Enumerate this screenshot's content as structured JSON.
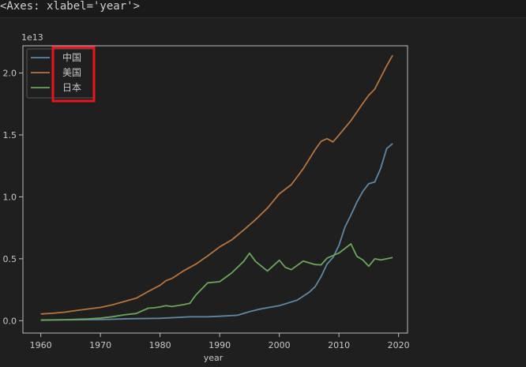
{
  "output_repr": "<Axes: xlabel='year'>",
  "chart_data": {
    "type": "line",
    "title": "",
    "xlabel": "year",
    "ylabel": "",
    "y_offset_label": "1e13",
    "xlim": [
      1957,
      2021.5
    ],
    "ylim": [
      -0.1,
      2.22
    ],
    "x_ticks": [
      1960,
      1970,
      1980,
      1990,
      2000,
      2010,
      2020
    ],
    "y_ticks": [
      0.0,
      0.5,
      1.0,
      1.5,
      2.0
    ],
    "y_tick_labels": [
      "0.0",
      "0.5",
      "1.0",
      "1.5",
      "2.0"
    ],
    "grid": false,
    "legend_position": "upper left",
    "highlight_box_color": "#e8141e",
    "series": [
      {
        "name": "中国",
        "color": "#5e88a8",
        "x": [
          1960,
          1965,
          1970,
          1975,
          1980,
          1985,
          1988,
          1990,
          1993,
          1995,
          1997,
          2000,
          2003,
          2005,
          2006,
          2007,
          2008,
          2009,
          2010,
          2011,
          2012,
          2013,
          2014,
          2015,
          2016,
          2017,
          2018,
          2019
        ],
        "y": [
          0.006,
          0.007,
          0.009,
          0.016,
          0.019,
          0.031,
          0.031,
          0.036,
          0.044,
          0.073,
          0.096,
          0.121,
          0.166,
          0.229,
          0.275,
          0.355,
          0.458,
          0.51,
          0.609,
          0.755,
          0.853,
          0.957,
          1.044,
          1.106,
          1.12,
          1.23,
          1.39,
          1.43
        ]
      },
      {
        "name": "美国",
        "color": "#b8743a",
        "x": [
          1960,
          1962,
          1964,
          1966,
          1968,
          1970,
          1972,
          1974,
          1976,
          1978,
          1980,
          1981,
          1982,
          1984,
          1986,
          1988,
          1990,
          1992,
          1994,
          1996,
          1998,
          2000,
          2002,
          2004,
          2006,
          2007,
          2008,
          2009,
          2010,
          2012,
          2014,
          2015,
          2016,
          2018,
          2019
        ],
        "y": [
          0.054,
          0.06,
          0.069,
          0.082,
          0.095,
          0.107,
          0.128,
          0.155,
          0.182,
          0.235,
          0.286,
          0.323,
          0.342,
          0.404,
          0.457,
          0.524,
          0.596,
          0.652,
          0.731,
          0.816,
          0.909,
          1.025,
          1.098,
          1.227,
          1.381,
          1.448,
          1.47,
          1.444,
          1.499,
          1.615,
          1.755,
          1.821,
          1.87,
          2.058,
          2.143
        ]
      },
      {
        "name": "日本",
        "color": "#6aa65a",
        "x": [
          1960,
          1964,
          1968,
          1970,
          1972,
          1974,
          1976,
          1978,
          1979,
          1980,
          1981,
          1982,
          1984,
          1985,
          1986,
          1988,
          1990,
          1992,
          1994,
          1995,
          1996,
          1998,
          2000,
          2001,
          2002,
          2004,
          2006,
          2007,
          2008,
          2010,
          2012,
          2013,
          2014,
          2015,
          2016,
          2017,
          2018,
          2019
        ],
        "y": [
          0.004,
          0.008,
          0.015,
          0.021,
          0.032,
          0.047,
          0.058,
          0.101,
          0.104,
          0.111,
          0.121,
          0.114,
          0.13,
          0.14,
          0.208,
          0.306,
          0.315,
          0.385,
          0.478,
          0.545,
          0.479,
          0.401,
          0.488,
          0.431,
          0.412,
          0.481,
          0.453,
          0.451,
          0.505,
          0.546,
          0.62,
          0.52,
          0.49,
          0.44,
          0.5,
          0.49,
          0.5,
          0.51
        ]
      }
    ]
  }
}
